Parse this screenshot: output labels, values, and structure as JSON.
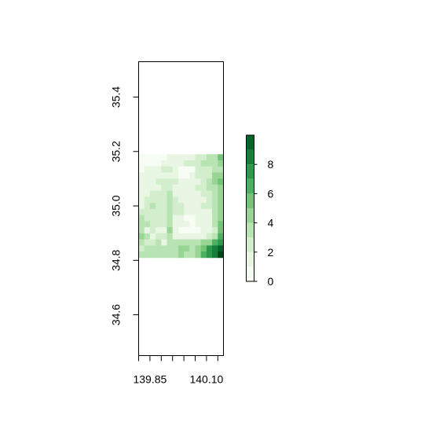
{
  "chart_data": {
    "type": "heatmap",
    "title": "",
    "xlabel": "",
    "ylabel": "",
    "xlim": [
      139.8,
      140.175
    ],
    "ylim": [
      34.45,
      35.53
    ],
    "x_ticks": [
      139.8,
      139.85,
      139.9,
      139.95,
      140.0,
      140.05,
      140.1,
      140.15
    ],
    "x_tick_labels": [
      {
        "value": 139.85,
        "label": "139.85"
      },
      {
        "value": 140.1,
        "label": "140.10"
      }
    ],
    "y_ticks": [
      {
        "value": 34.6,
        "label": "34.6"
      },
      {
        "value": 34.8,
        "label": "34.8"
      },
      {
        "value": 35.0,
        "label": "35.0"
      },
      {
        "value": 35.2,
        "label": "35.2"
      },
      {
        "value": 35.4,
        "label": "35.4"
      }
    ],
    "grid": {
      "x_start": 139.8,
      "x_end": 140.175,
      "y_start": 34.81,
      "y_end": 35.19,
      "cols": 15,
      "rows": 17,
      "values_top_to_bottom": [
        [
          0.3,
          0.4,
          0.5,
          0.6,
          0.8,
          1.0,
          1.2,
          1.3,
          1.5,
          1.7,
          2.0,
          2.5,
          3.0,
          3.2,
          5.0
        ],
        [
          0.4,
          0.5,
          0.6,
          0.7,
          1.0,
          1.3,
          1.5,
          1.7,
          2.0,
          2.0,
          2.6,
          3.2,
          3.6,
          3.5,
          4.5
        ],
        [
          0.8,
          1.5,
          1.7,
          1.8,
          2.0,
          2.0,
          1.0,
          0.8,
          0.9,
          0.8,
          2.4,
          2.6,
          2.2,
          3.0,
          3.5
        ],
        [
          1.2,
          1.4,
          1.6,
          1.7,
          1.8,
          1.8,
          1.0,
          0.9,
          0.9,
          1.0,
          2.2,
          2.4,
          2.6,
          3.8,
          4.5
        ],
        [
          1.4,
          1.6,
          1.8,
          1.9,
          2.0,
          2.0,
          1.9,
          1.8,
          1.7,
          1.6,
          1.8,
          2.2,
          3.0,
          4.2,
          5.2
        ],
        [
          1.5,
          1.7,
          1.8,
          1.8,
          1.9,
          2.6,
          1.8,
          1.6,
          1.5,
          1.6,
          1.9,
          2.3,
          2.8,
          3.0,
          4.5
        ],
        [
          1.6,
          1.8,
          1.9,
          1.9,
          2.0,
          2.8,
          1.7,
          1.5,
          1.4,
          1.6,
          1.8,
          2.1,
          2.6,
          2.9,
          4.2
        ],
        [
          1.7,
          1.9,
          2.6,
          1.9,
          2.0,
          3.0,
          2.3,
          1.6,
          1.3,
          1.5,
          1.7,
          1.8,
          2.4,
          2.9,
          4.0
        ],
        [
          1.8,
          2.0,
          2.8,
          1.9,
          2.0,
          2.8,
          2.5,
          2.3,
          1.7,
          1.6,
          1.6,
          1.9,
          2.0,
          3.2,
          4.0
        ],
        [
          2.6,
          2.4,
          2.0,
          1.9,
          2.0,
          3.3,
          2.0,
          2.1,
          1.6,
          1.5,
          1.4,
          1.6,
          1.8,
          3.4,
          4.2
        ],
        [
          3.0,
          2.6,
          2.4,
          2.2,
          2.0,
          2.8,
          1.8,
          1.3,
          0.9,
          0.9,
          1.1,
          1.3,
          1.6,
          3.0,
          4.4
        ],
        [
          3.2,
          2.9,
          2.6,
          2.5,
          2.3,
          3.5,
          1.4,
          1.2,
          1.0,
          0.8,
          1.0,
          1.2,
          1.6,
          2.9,
          4.8
        ],
        [
          3.5,
          1.2,
          2.4,
          1.5,
          1.8,
          4.0,
          1.0,
          0.8,
          0.7,
          0.8,
          0.9,
          1.2,
          1.8,
          2.5,
          5.0
        ],
        [
          3.8,
          2.8,
          1.4,
          2.6,
          2.4,
          3.2,
          1.5,
          1.2,
          1.0,
          1.0,
          1.2,
          1.5,
          2.0,
          3.5,
          5.5
        ],
        [
          3.5,
          2.6,
          2.4,
          3.0,
          1.6,
          2.8,
          3.5,
          2.8,
          3.0,
          3.0,
          3.2,
          4.0,
          4.5,
          5.5,
          7.0
        ],
        [
          2.6,
          3.6,
          3.0,
          2.8,
          2.8,
          3.0,
          3.2,
          4.4,
          3.8,
          3.6,
          4.2,
          5.0,
          6.5,
          7.5,
          8.8
        ],
        [
          3.2,
          3.4,
          3.0,
          3.2,
          3.4,
          3.6,
          3.6,
          3.8,
          3.6,
          3.6,
          4.0,
          6.0,
          6.8,
          8.0,
          9.5
        ]
      ]
    },
    "colorbar": {
      "min": 0,
      "max": 10,
      "levels": [
        0,
        1,
        2,
        3,
        4,
        5,
        6,
        7,
        8,
        9,
        10
      ],
      "colors": [
        "#f7fcf5",
        "#e8f6e3",
        "#d3eecd",
        "#b8e3b2",
        "#98d594",
        "#73c476",
        "#4bb062",
        "#2f984f",
        "#157f3b",
        "#036429",
        "#00441b"
      ],
      "tick_labels": [
        {
          "value": 0,
          "label": "0"
        },
        {
          "value": 2,
          "label": "2"
        },
        {
          "value": 4,
          "label": "4"
        },
        {
          "value": 6,
          "label": "6"
        },
        {
          "value": 8,
          "label": "8"
        }
      ]
    }
  }
}
